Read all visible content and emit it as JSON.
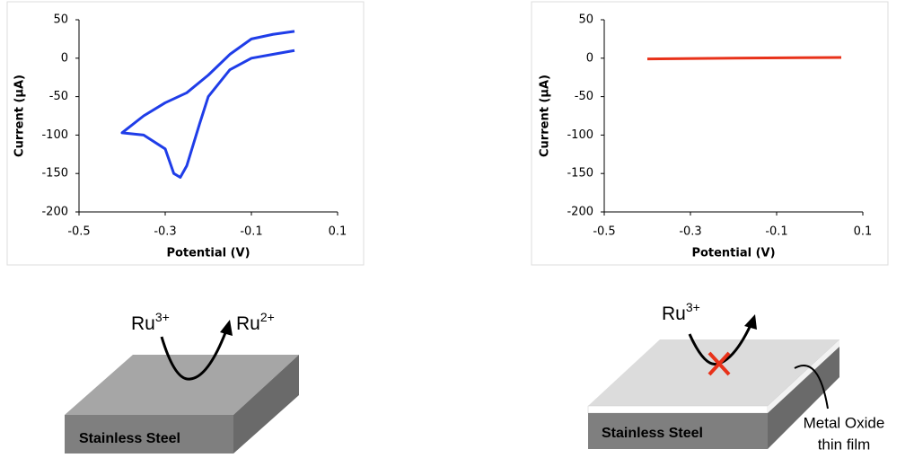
{
  "chart_data": [
    {
      "type": "line",
      "x_label": "Potential (V)",
      "y_label": "Current (µA)",
      "xlim": [
        -0.5,
        0.1
      ],
      "xticks": [
        -0.5,
        -0.3,
        -0.1,
        0.1
      ],
      "ylim": [
        -200,
        50
      ],
      "yticks": [
        -200,
        -150,
        -100,
        -50,
        0,
        50
      ],
      "series": [
        {
          "color": "#1f3de8",
          "x": [
            0,
            -0.05,
            -0.1,
            -0.15,
            -0.2,
            -0.22,
            -0.25,
            -0.265,
            -0.28,
            -0.3,
            -0.35,
            -0.4,
            -0.35,
            -0.3,
            -0.25,
            -0.2,
            -0.15,
            -0.1,
            -0.05,
            0
          ],
          "values": [
            10,
            5,
            0,
            -15,
            -50,
            -85,
            -140,
            -155,
            -150,
            -118,
            -100,
            -97,
            -75,
            -58,
            -45,
            -22,
            5,
            25,
            31,
            35
          ]
        }
      ]
    },
    {
      "type": "line",
      "x_label": "Potential (V)",
      "y_label": "Current (µA)",
      "xlim": [
        -0.5,
        0.1
      ],
      "xticks": [
        -0.5,
        -0.3,
        -0.1,
        0.1
      ],
      "ylim": [
        -200,
        50
      ],
      "yticks": [
        -200,
        -150,
        -100,
        -50,
        0,
        50
      ],
      "series": [
        {
          "color": "#e8321a",
          "x": [
            -0.4,
            -0.2,
            0.05
          ],
          "values": [
            -1,
            0,
            1
          ]
        }
      ]
    }
  ],
  "diagrams": [
    {
      "species": [
        {
          "symbol": "Ru",
          "charge": "3+"
        },
        {
          "symbol": "Ru",
          "charge": "2+"
        }
      ],
      "substrate": "Stainless Steel"
    },
    {
      "species": [
        {
          "symbol": "Ru",
          "charge": "3+"
        }
      ],
      "substrate": "Stainless Steel",
      "film_label": [
        "Metal Oxide",
        "thin film"
      ]
    }
  ]
}
